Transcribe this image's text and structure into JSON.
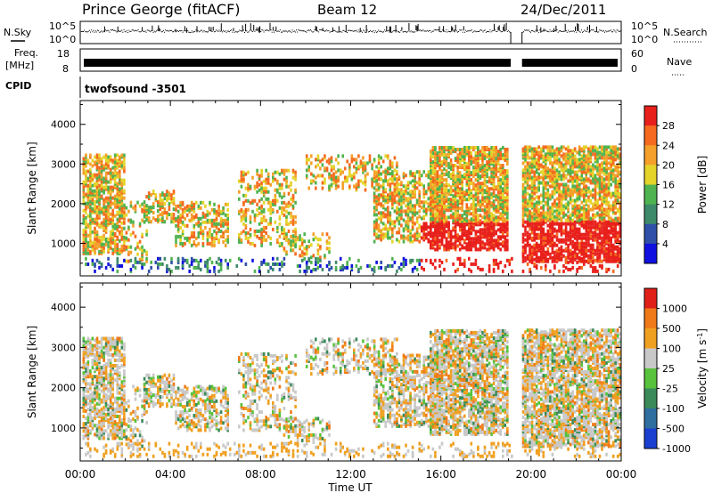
{
  "header": {
    "title": "Prince George (fitACF)",
    "beam": "Beam 12",
    "date": "24/Dec/2011"
  },
  "strips": {
    "nsky_label": "N.Sky",
    "nsky_ticks": [
      "10^5",
      "10^0"
    ],
    "nsearch_label": "N.Search",
    "nsearch_ticks": [
      "10^5",
      "10^0"
    ],
    "freq_label_1": "Freq.",
    "freq_label_2": "[MHz]",
    "freq_ticks": [
      "18",
      "8"
    ],
    "nave_label": "Nave",
    "nave_ticks": [
      "60",
      "0"
    ],
    "cpid_label": "CPID",
    "cpid_value": "twofsound -3501",
    "data_gap_hours": [
      19.1,
      19.6
    ]
  },
  "chart_data": [
    {
      "type": "heatmap",
      "name": "power",
      "ylabel": "Slant Range [km]",
      "ylim": [
        180,
        4600
      ],
      "yticks": [
        "1000",
        "2000",
        "3000",
        "4000"
      ],
      "xlim": [
        0,
        24
      ],
      "colorbar_label": "Power [dB]",
      "colorbar_ticks": [
        "4",
        "8",
        "12",
        "16",
        "20",
        "24",
        "28"
      ],
      "colorbar_range": [
        0,
        32
      ],
      "colors": [
        "#1010e0",
        "#2f4fa8",
        "#3d8a6a",
        "#4fb34f",
        "#e4d42a",
        "#f4a02a",
        "#f56a1e",
        "#e8201c"
      ]
    },
    {
      "type": "heatmap",
      "name": "velocity",
      "ylabel": "Slant Range [km]",
      "ylim": [
        180,
        4600
      ],
      "yticks": [
        "1000",
        "2000",
        "3000",
        "4000"
      ],
      "xlim": [
        0,
        24
      ],
      "xticks": [
        "00:00",
        "04:00",
        "08:00",
        "12:00",
        "16:00",
        "20:00",
        "00:00"
      ],
      "xlabel": "Time UT",
      "colorbar_label": "Velocity [m s",
      "colorbar_label_sup": "-1",
      "colorbar_label_end": "]",
      "colorbar_ticks": [
        "1000",
        "500",
        "100",
        "25",
        "-25",
        "-100",
        "-500",
        "-1000"
      ],
      "colors": [
        "#1a3fd0",
        "#2f6fa0",
        "#3a8a5a",
        "#58c23c",
        "#c8c8c8",
        "#f0a020",
        "#f07a18",
        "#e02018"
      ]
    }
  ]
}
